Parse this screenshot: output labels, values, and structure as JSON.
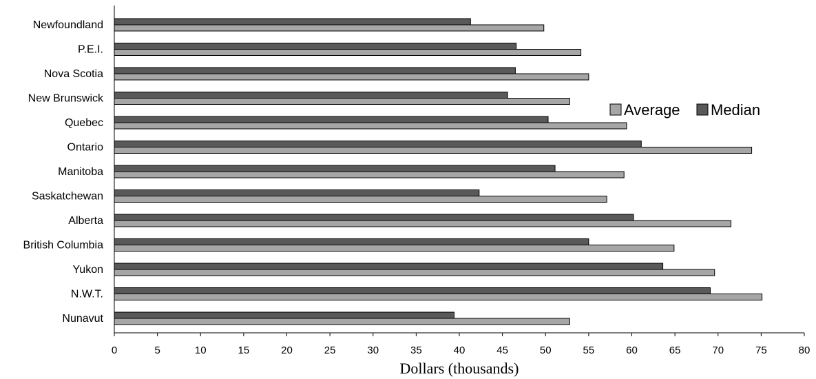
{
  "chart_data": {
    "type": "bar",
    "orientation": "horizontal",
    "title": "",
    "xlabel": "Dollars (thousands)",
    "ylabel": "",
    "xlim": [
      0,
      80
    ],
    "x_ticks": [
      0,
      5,
      10,
      15,
      20,
      25,
      30,
      35,
      40,
      45,
      50,
      55,
      60,
      65,
      70,
      75,
      80
    ],
    "grid": false,
    "legend_position": "right",
    "categories": [
      "Newfoundland",
      "P.E.I.",
      "Nova Scotia",
      "New Brunswick",
      "Quebec",
      "Ontario",
      "Manitoba",
      "Saskatchewan",
      "Alberta",
      "British Columbia",
      "Yukon",
      "N.W.T.",
      "Nunavut"
    ],
    "series": [
      {
        "name": "Median",
        "color": "#595959",
        "values": [
          41.3,
          46.6,
          46.5,
          45.6,
          50.3,
          61.1,
          51.1,
          42.3,
          60.2,
          55.0,
          63.6,
          69.1,
          39.4
        ]
      },
      {
        "name": "Average",
        "color": "#a6a6a6",
        "values": [
          49.8,
          54.1,
          55.0,
          52.8,
          59.4,
          73.9,
          59.1,
          57.1,
          71.5,
          64.9,
          69.6,
          75.1,
          52.8
        ]
      }
    ],
    "legend": [
      "Average",
      "Median"
    ]
  }
}
